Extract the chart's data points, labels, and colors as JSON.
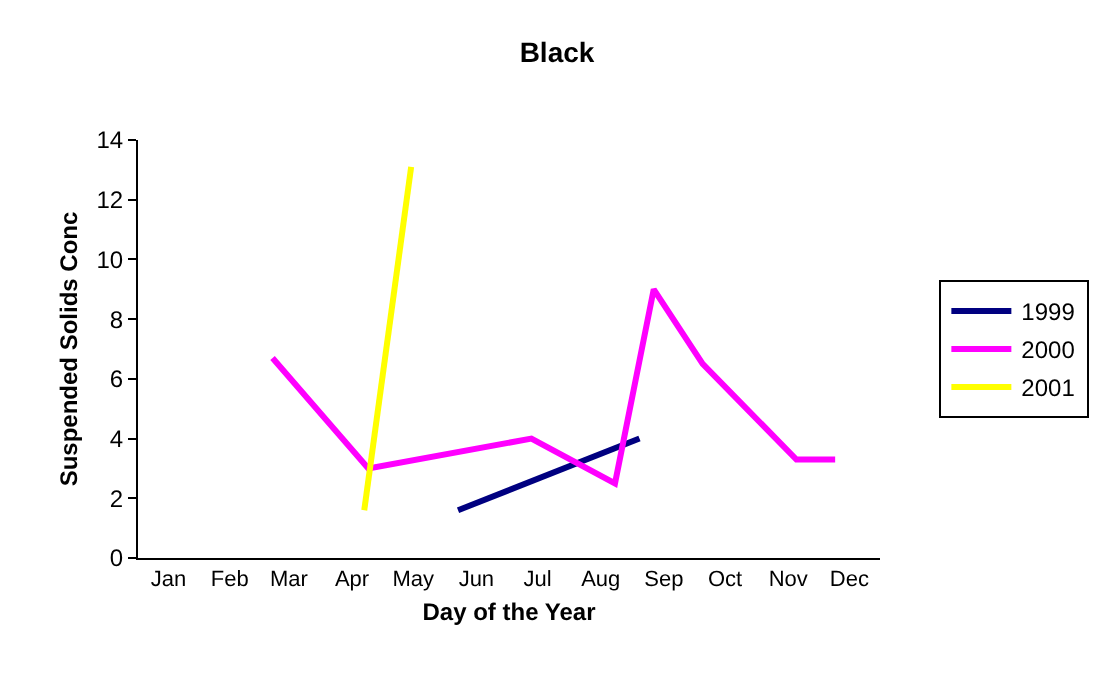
{
  "chart_data": {
    "type": "line",
    "title": "Black",
    "xlabel": "Day of the Year",
    "ylabel": "Suspended Solids Conc",
    "series": [
      {
        "name": "1999",
        "color": "#000080",
        "x": [
          "--06-07",
          "--09-04"
        ],
        "values": [
          1.6,
          4.0
        ]
      },
      {
        "name": "2000",
        "color": "#ff00ff",
        "x": [
          "--03-08",
          "--04-24",
          "--07-13",
          "--08-23",
          "--09-11",
          "--10-05",
          "--11-20",
          "--12-09"
        ],
        "values": [
          6.7,
          3.0,
          4.0,
          2.5,
          9.0,
          6.5,
          3.3,
          3.3
        ]
      },
      {
        "name": "2001",
        "color": "#ffff00",
        "x": [
          "--04-22",
          "--05-15"
        ],
        "values": [
          1.6,
          13.1
        ]
      }
    ],
    "xlim": [
      "--01-01",
      "--12-31"
    ],
    "xticks": [
      {
        "value": "--01-16",
        "label": "Jan"
      },
      {
        "value": "--02-15",
        "label": "Feb"
      },
      {
        "value": "--03-16",
        "label": "Mar"
      },
      {
        "value": "--04-16",
        "label": "Apr"
      },
      {
        "value": "--05-16",
        "label": "May"
      },
      {
        "value": "--06-16",
        "label": "Jun"
      },
      {
        "value": "--07-16",
        "label": "Jul"
      },
      {
        "value": "--08-16",
        "label": "Aug"
      },
      {
        "value": "--09-16",
        "label": "Sep"
      },
      {
        "value": "--10-16",
        "label": "Oct"
      },
      {
        "value": "--11-16",
        "label": "Nov"
      },
      {
        "value": "--12-16",
        "label": "Dec"
      }
    ],
    "ylim": [
      0,
      14
    ],
    "yticks": [
      0,
      2,
      4,
      6,
      8,
      10,
      12,
      14
    ],
    "legend": "right",
    "grid": false,
    "marker": "none",
    "line_style": "solid"
  }
}
